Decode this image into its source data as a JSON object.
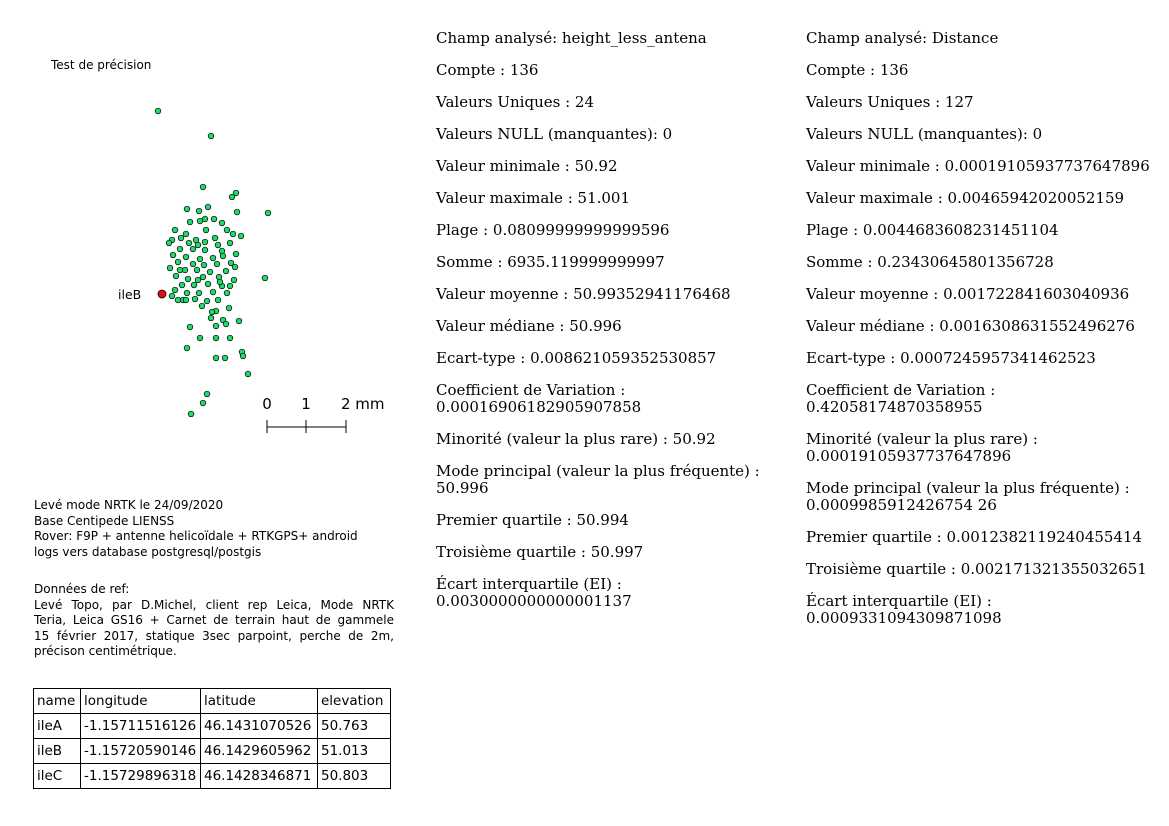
{
  "map": {
    "title": "Test de précision",
    "point_label": "ileB",
    "scale": {
      "labels": [
        "0",
        "1",
        "2 mm"
      ]
    },
    "colors": {
      "points": "#1fdc6a",
      "reference_point": "#e01010"
    }
  },
  "survey_info": {
    "lines": [
      "Levé mode NRTK le 24/09/2020",
      "Base Centipede LIENSS",
      "Rover: F9P + antenne helicoïdale + RTKGPS+ android",
      "logs vers database postgresql/postgis"
    ]
  },
  "reference_info": {
    "heading": "Données de ref:",
    "lines": [
      "Levé Topo, par D.Michel, client rep Leica, Mode NRTK",
      "Teria, Leica GS16 + Carnet de terrain haut de gammele",
      "15 février 2017, statique 3sec parpoint, perche de 2m,",
      "précison centimétrique."
    ]
  },
  "table": {
    "headers": [
      "name",
      "longitude",
      "latitude",
      "elevation"
    ],
    "rows": [
      [
        "ileA",
        "-1.15711516126",
        "46.1431070526",
        "50.763"
      ],
      [
        "ileB",
        "-1.15720590146",
        "46.1429605962",
        "51.013"
      ],
      [
        "ileC",
        "-1.15729896318",
        "46.1428346871",
        "50.803"
      ]
    ]
  },
  "stats": [
    {
      "lines": [
        "Champ analysé: height_less_antena",
        "Compte : 136",
        "Valeurs Uniques : 24",
        "Valeurs NULL (manquantes): 0",
        "Valeur minimale : 50.92",
        "Valeur maximale : 51.001",
        "Plage : 0.08099999999999596",
        "Somme : 6935.119999999997",
        "Valeur moyenne : 50.99352941176468",
        "Valeur médiane : 50.996",
        "Ecart-type : 0.008621059352530857",
        [
          "Coefficient de Variation :",
          "0.00016906182905907858"
        ],
        "Minorité (valeur la plus rare) : 50.92",
        [
          "Mode principal (valeur la plus fréquente) :",
          "50.996"
        ],
        "Premier quartile : 50.994",
        "Troisième quartile : 50.997",
        [
          "Écart interquartile (EI) :",
          "0.0030000000000001137"
        ]
      ]
    },
    {
      "lines": [
        "Champ analysé: Distance",
        "Compte : 136",
        "Valeurs Uniques : 127",
        "Valeurs NULL (manquantes): 0",
        "Valeur minimale : 0.00019105937737647896",
        "Valeur maximale : 0.00465942020052159",
        "Plage : 0.0044683608231451104",
        "Somme : 0.23430645801356728",
        "Valeur moyenne : 0.001722841603040936",
        "Valeur médiane : 0.0016308631552496276",
        "Ecart-type : 0.0007245957341462523",
        [
          "Coefficient de Variation :",
          "0.42058174870358955"
        ],
        [
          "Minorité (valeur la plus rare) :",
          "0.00019105937737647896"
        ],
        [
          "Mode principal (valeur la plus fréquente) :",
          "0.0009985912426754 26"
        ],
        "Premier quartile : 0.0012382119240455414",
        "Troisième quartile : 0.002171321355032651",
        [
          "Écart interquartile (EI) :",
          "0.0009331094309871098"
        ]
      ]
    }
  ]
}
